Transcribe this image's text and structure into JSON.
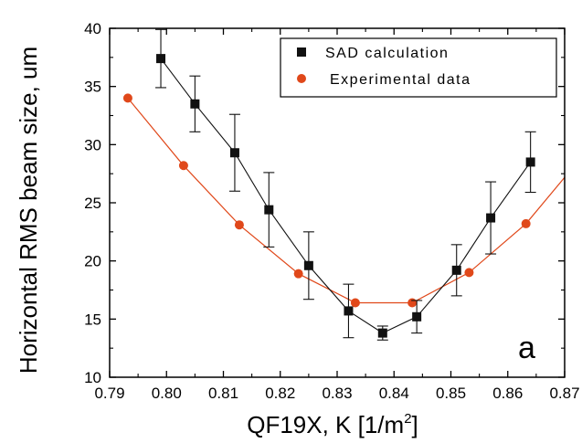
{
  "chart_data": {
    "type": "line",
    "xlabel": "QF19X, K [1/m",
    "xlabel_sup": "2",
    "xlabel_close": "]",
    "ylabel": "Horizontal RMS beam size, um",
    "xlim": [
      0.79,
      0.87
    ],
    "ylim": [
      10,
      40
    ],
    "xticks": [
      "0.79",
      "0.80",
      "0.81",
      "0.82",
      "0.83",
      "0.84",
      "0.85",
      "0.86",
      "0.87"
    ],
    "yticks": [
      "10",
      "15",
      "20",
      "25",
      "30",
      "35",
      "40"
    ],
    "panel_label": "a",
    "legend_position": "top-right",
    "series": [
      {
        "name": "SAD calculation",
        "marker": "square",
        "color": "#111111",
        "x": [
          0.799,
          0.805,
          0.812,
          0.818,
          0.825,
          0.832,
          0.838,
          0.844,
          0.851,
          0.857,
          0.864
        ],
        "y": [
          37.4,
          33.5,
          29.3,
          24.4,
          19.6,
          15.7,
          13.8,
          15.2,
          19.2,
          23.7,
          28.5
        ],
        "err": [
          2.5,
          2.4,
          3.3,
          3.2,
          2.9,
          2.3,
          0.6,
          1.4,
          2.2,
          3.1,
          2.6
        ]
      },
      {
        "name": "Experimental data",
        "marker": "circle",
        "color": "#e0481a",
        "x": [
          0.7932,
          0.803,
          0.8128,
          0.8232,
          0.8332,
          0.8432,
          0.8532,
          0.8632,
          0.8765
        ],
        "y": [
          34.0,
          28.2,
          23.1,
          18.9,
          16.4,
          16.4,
          19.0,
          23.2,
          31.0
        ],
        "visible_markers": 8
      }
    ]
  }
}
